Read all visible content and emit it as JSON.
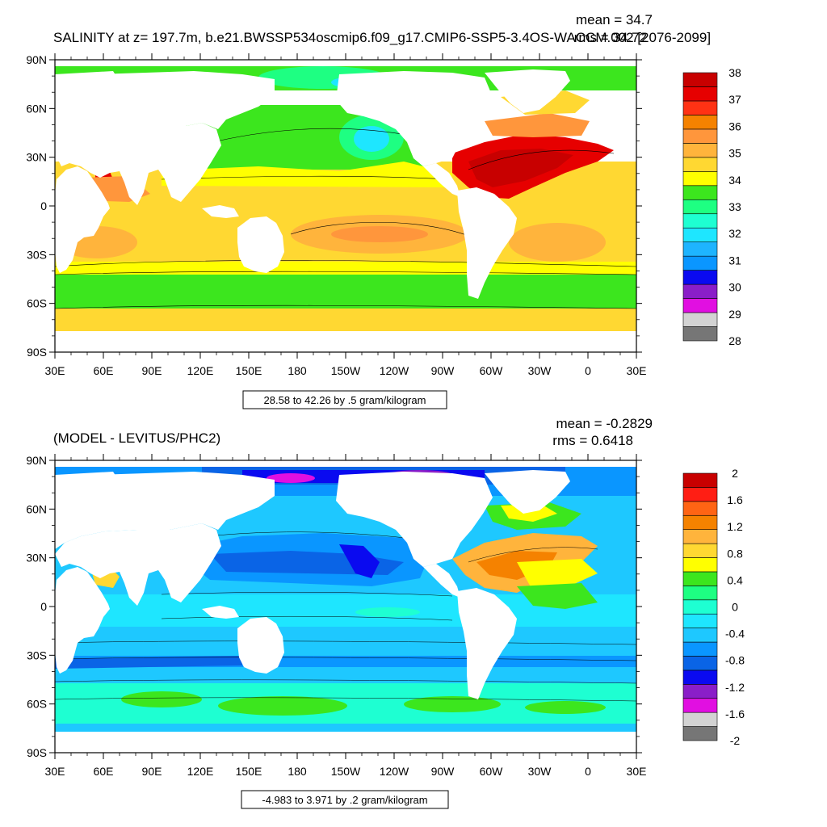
{
  "panels": [
    {
      "title": "SALINITY at z= 197.7m, b.e21.BWSSP534oscmip6.f09_g17.CMIP6-SSP5-3.4OS-WACCM.002 [2076-2099]",
      "stats": {
        "mean": "mean = 34.7",
        "rms": "rms = 34.72"
      },
      "range_note": "28.58 to 42.26 by .5 gram/kilogram",
      "colorbar": {
        "colors": [
          "#767676",
          "#d3d3d3",
          "#e10fe1",
          "#8a1ec8",
          "#0a0af0",
          "#0a96ff",
          "#1eb4ff",
          "#1ee6ff",
          "#1effd2",
          "#1eff82",
          "#3ce61e",
          "#ffff00",
          "#ffd832",
          "#ffb43c",
          "#ff963c",
          "#f58200",
          "#ff3214",
          "#e60000",
          "#c80000"
        ],
        "labels": [
          "38",
          "37",
          "36",
          "35",
          "34",
          "33",
          "32",
          "31",
          "30",
          "29",
          "28"
        ]
      }
    },
    {
      "title": "(MODEL - LEVITUS/PHC2)",
      "stats": {
        "mean": "mean = -0.2829",
        "rms": "rms = 0.6418"
      },
      "range_note": "-4.983 to 3.971 by .2 gram/kilogram",
      "colorbar": {
        "colors": [
          "#767676",
          "#d3d3d3",
          "#e10fe1",
          "#8a1ec8",
          "#0a0af0",
          "#0a64e6",
          "#0a96ff",
          "#1ec8ff",
          "#1ee6ff",
          "#1effd2",
          "#1eff82",
          "#3ce61e",
          "#ffff00",
          "#ffd832",
          "#ffb43c",
          "#f58200",
          "#ff6414",
          "#ff1e14",
          "#c80000"
        ],
        "labels": [
          "2",
          "1.6",
          "1.2",
          "0.8",
          "0.4",
          "0",
          "-0.4",
          "-0.8",
          "-1.2",
          "-1.6",
          "-2"
        ]
      }
    }
  ],
  "axes": {
    "lat_labels": [
      "90N",
      "60N",
      "30N",
      "0",
      "30S",
      "60S",
      "90S"
    ],
    "lon_labels": [
      "30E",
      "60E",
      "90E",
      "120E",
      "150E",
      "180",
      "150W",
      "120W",
      "90W",
      "60W",
      "30W",
      "0",
      "30E"
    ]
  }
}
